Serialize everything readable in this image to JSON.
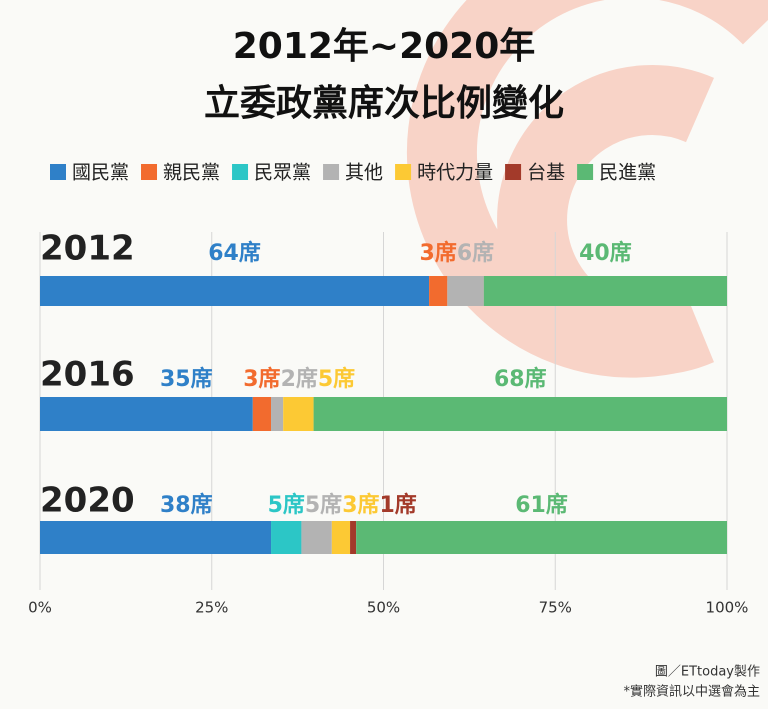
{
  "chart_data": {
    "type": "stacked_bar_100",
    "title": [
      "2012年~2020年",
      "立委政黨席次比例變化"
    ],
    "categories": [
      "2012",
      "2016",
      "2020"
    ],
    "series": [
      {
        "name": "國民黨",
        "color": "#2f80c8",
        "values": [
          64,
          35,
          38
        ],
        "value_labels": [
          "64席",
          "35席",
          "38席"
        ]
      },
      {
        "name": "親民黨",
        "color": "#f26b2e",
        "values": [
          3,
          3,
          null
        ],
        "value_labels": [
          "3席",
          "3席",
          null
        ]
      },
      {
        "name": "民眾黨",
        "color": "#2cc6c6",
        "values": [
          null,
          null,
          5
        ],
        "value_labels": [
          null,
          null,
          "5席"
        ]
      },
      {
        "name": "其他",
        "color": "#b3b3b3",
        "values": [
          6,
          2,
          5
        ],
        "value_labels": [
          "6席",
          "2席",
          "5席"
        ]
      },
      {
        "name": "時代力量",
        "color": "#fcc934",
        "values": [
          null,
          5,
          3
        ],
        "value_labels": [
          null,
          "5席",
          "3席"
        ]
      },
      {
        "name": "台基",
        "color": "#a33a2a",
        "values": [
          null,
          null,
          1
        ],
        "value_labels": [
          null,
          null,
          "1席"
        ]
      },
      {
        "name": "民進黨",
        "color": "#5bb974",
        "values": [
          40,
          68,
          61
        ],
        "value_labels": [
          "40席",
          "68席",
          "61席"
        ]
      }
    ],
    "xlim": [
      0,
      100
    ],
    "xticks": [
      {
        "value": 0,
        "label": "0%"
      },
      {
        "value": 25,
        "label": "25%"
      },
      {
        "value": 50,
        "label": "50%"
      },
      {
        "value": 75,
        "label": "75%"
      },
      {
        "value": 100,
        "label": "100%"
      }
    ],
    "grid": true,
    "annotations": [
      "圖／ETtoday製作",
      "*實際資訊以中選會為主"
    ]
  }
}
